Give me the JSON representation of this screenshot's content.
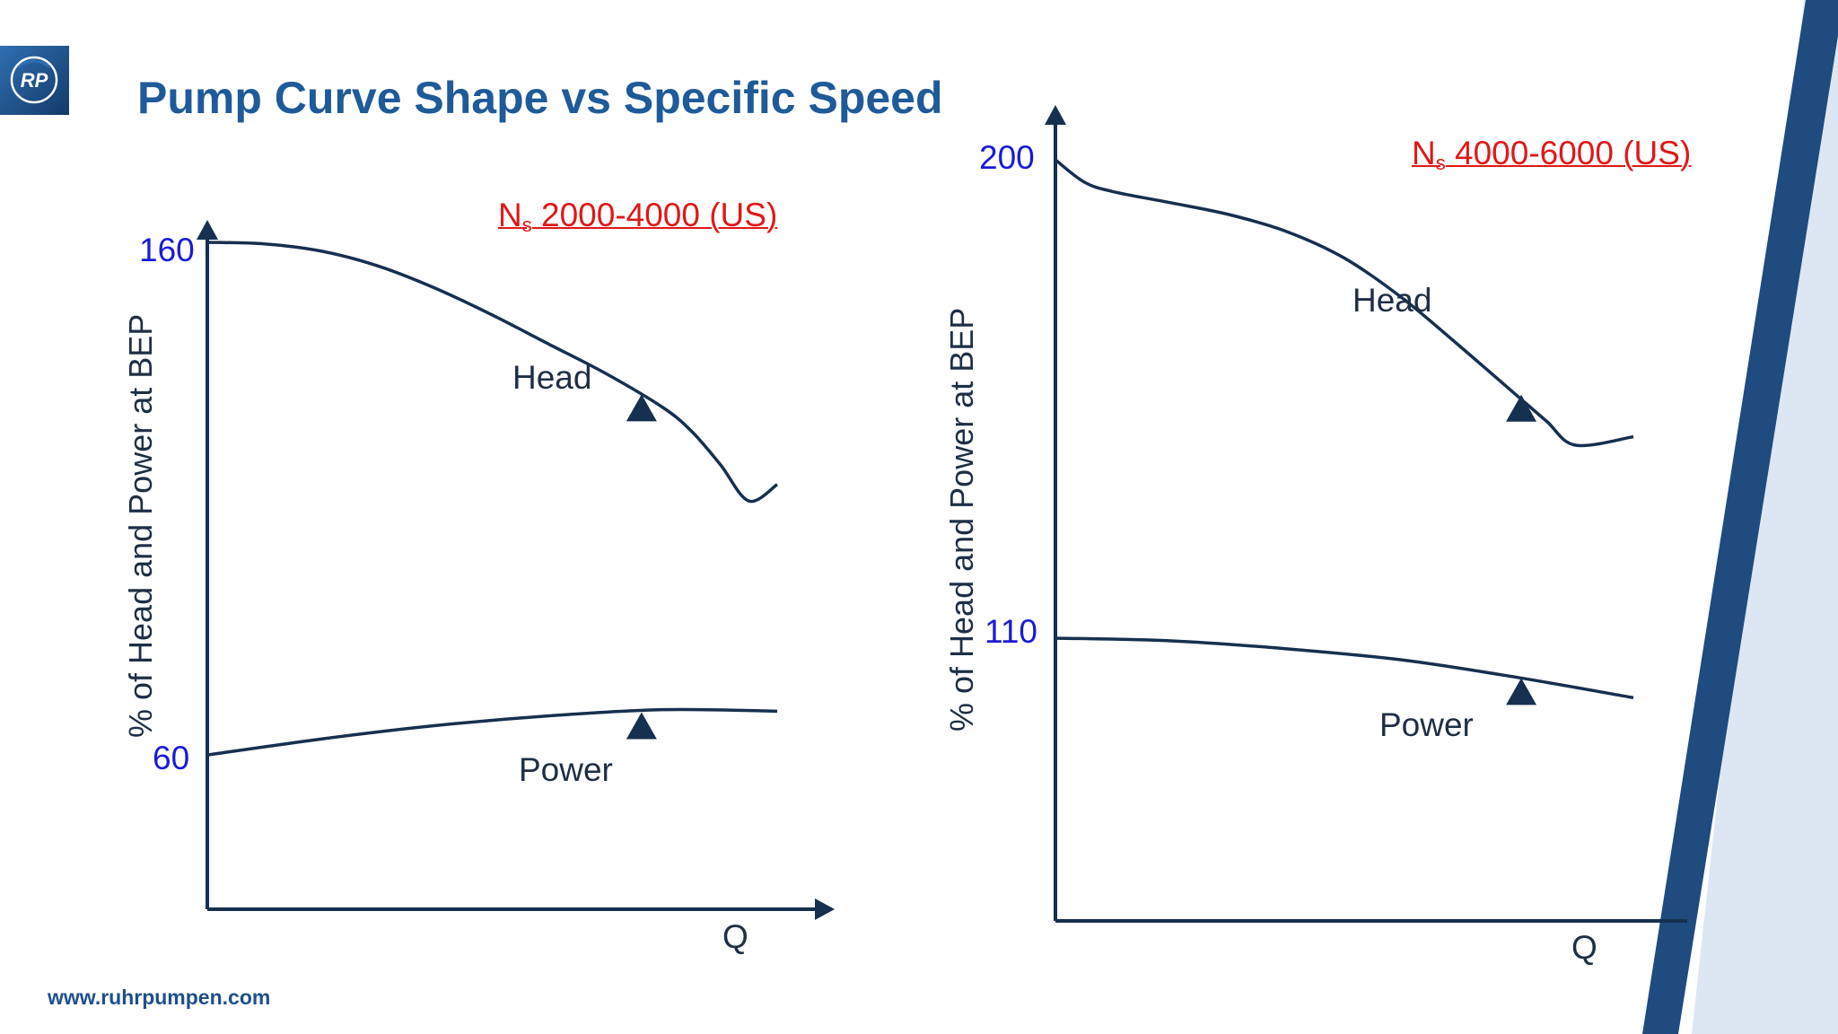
{
  "title": "Pump Curve Shape vs Specific Speed",
  "footer_url": "www.ruhrpumpen.com",
  "logo_text": "RP",
  "colors": {
    "title": "#1f5a99",
    "curve": "#16304f",
    "tick_label": "#1a1ad6",
    "ns_label": "#e01818",
    "band_dark": "#1f4b7e",
    "band_light": "#dde7f3"
  },
  "chart_data": [
    {
      "type": "line",
      "subtitle": {
        "symbol": "N",
        "sub": "s",
        "text": " 2000-4000 (US)"
      },
      "ylabel": "% of Head and Power at BEP",
      "xlabel": "Q",
      "yticks": [
        {
          "value": 160,
          "label": "160"
        },
        {
          "value": 60,
          "label": "60"
        }
      ],
      "ylim": [
        30,
        160
      ],
      "xlim": [
        0,
        100
      ],
      "series": [
        {
          "name": "Head",
          "x": [
            0,
            10,
            20,
            30,
            40,
            50,
            60,
            70,
            80,
            85,
            90,
            95,
            100
          ],
          "y": [
            160.0,
            159.7,
            158.3,
            155.4,
            151.1,
            145.9,
            140.2,
            134.5,
            127.9,
            123.3,
            116.9,
            109.8,
            113.0
          ],
          "bep": {
            "x": 76.2,
            "y": 130.5
          }
        },
        {
          "name": "Power",
          "x": [
            0,
            20,
            40,
            60,
            80,
            100
          ],
          "y": [
            60.5,
            63.6,
            66.2,
            68.1,
            69.3,
            69.0
          ],
          "bep": {
            "x": 76.2,
            "y": 68.8
          }
        }
      ]
    },
    {
      "type": "line",
      "subtitle": {
        "symbol": "N",
        "sub": "s",
        "text": " 4000-6000 (US)"
      },
      "ylabel": "% of Head and Power at BEP",
      "xlabel": "Q",
      "yticks": [
        {
          "value": 200,
          "label": "200"
        },
        {
          "value": 110,
          "label": "110"
        }
      ],
      "ylim": [
        80,
        200
      ],
      "xlim": [
        0,
        100
      ],
      "series": [
        {
          "name": "Head",
          "x": [
            0,
            5,
            10,
            20,
            30,
            40,
            50,
            60,
            70,
            80,
            85,
            90,
            100
          ],
          "y": [
            200,
            195.8,
            194.0,
            191.9,
            189.7,
            186.5,
            181.5,
            174.0,
            164.9,
            155.5,
            150.8,
            146.3,
            147.9
          ],
          "bep": {
            "x": 80.6,
            "y": 155.8
          }
        },
        {
          "name": "Power",
          "x": [
            0,
            20,
            40,
            60,
            80,
            100
          ],
          "y": [
            110.0,
            109.5,
            108.0,
            105.9,
            102.6,
            98.8
          ],
          "bep": {
            "x": 80.6,
            "y": 102.5
          }
        }
      ]
    }
  ]
}
